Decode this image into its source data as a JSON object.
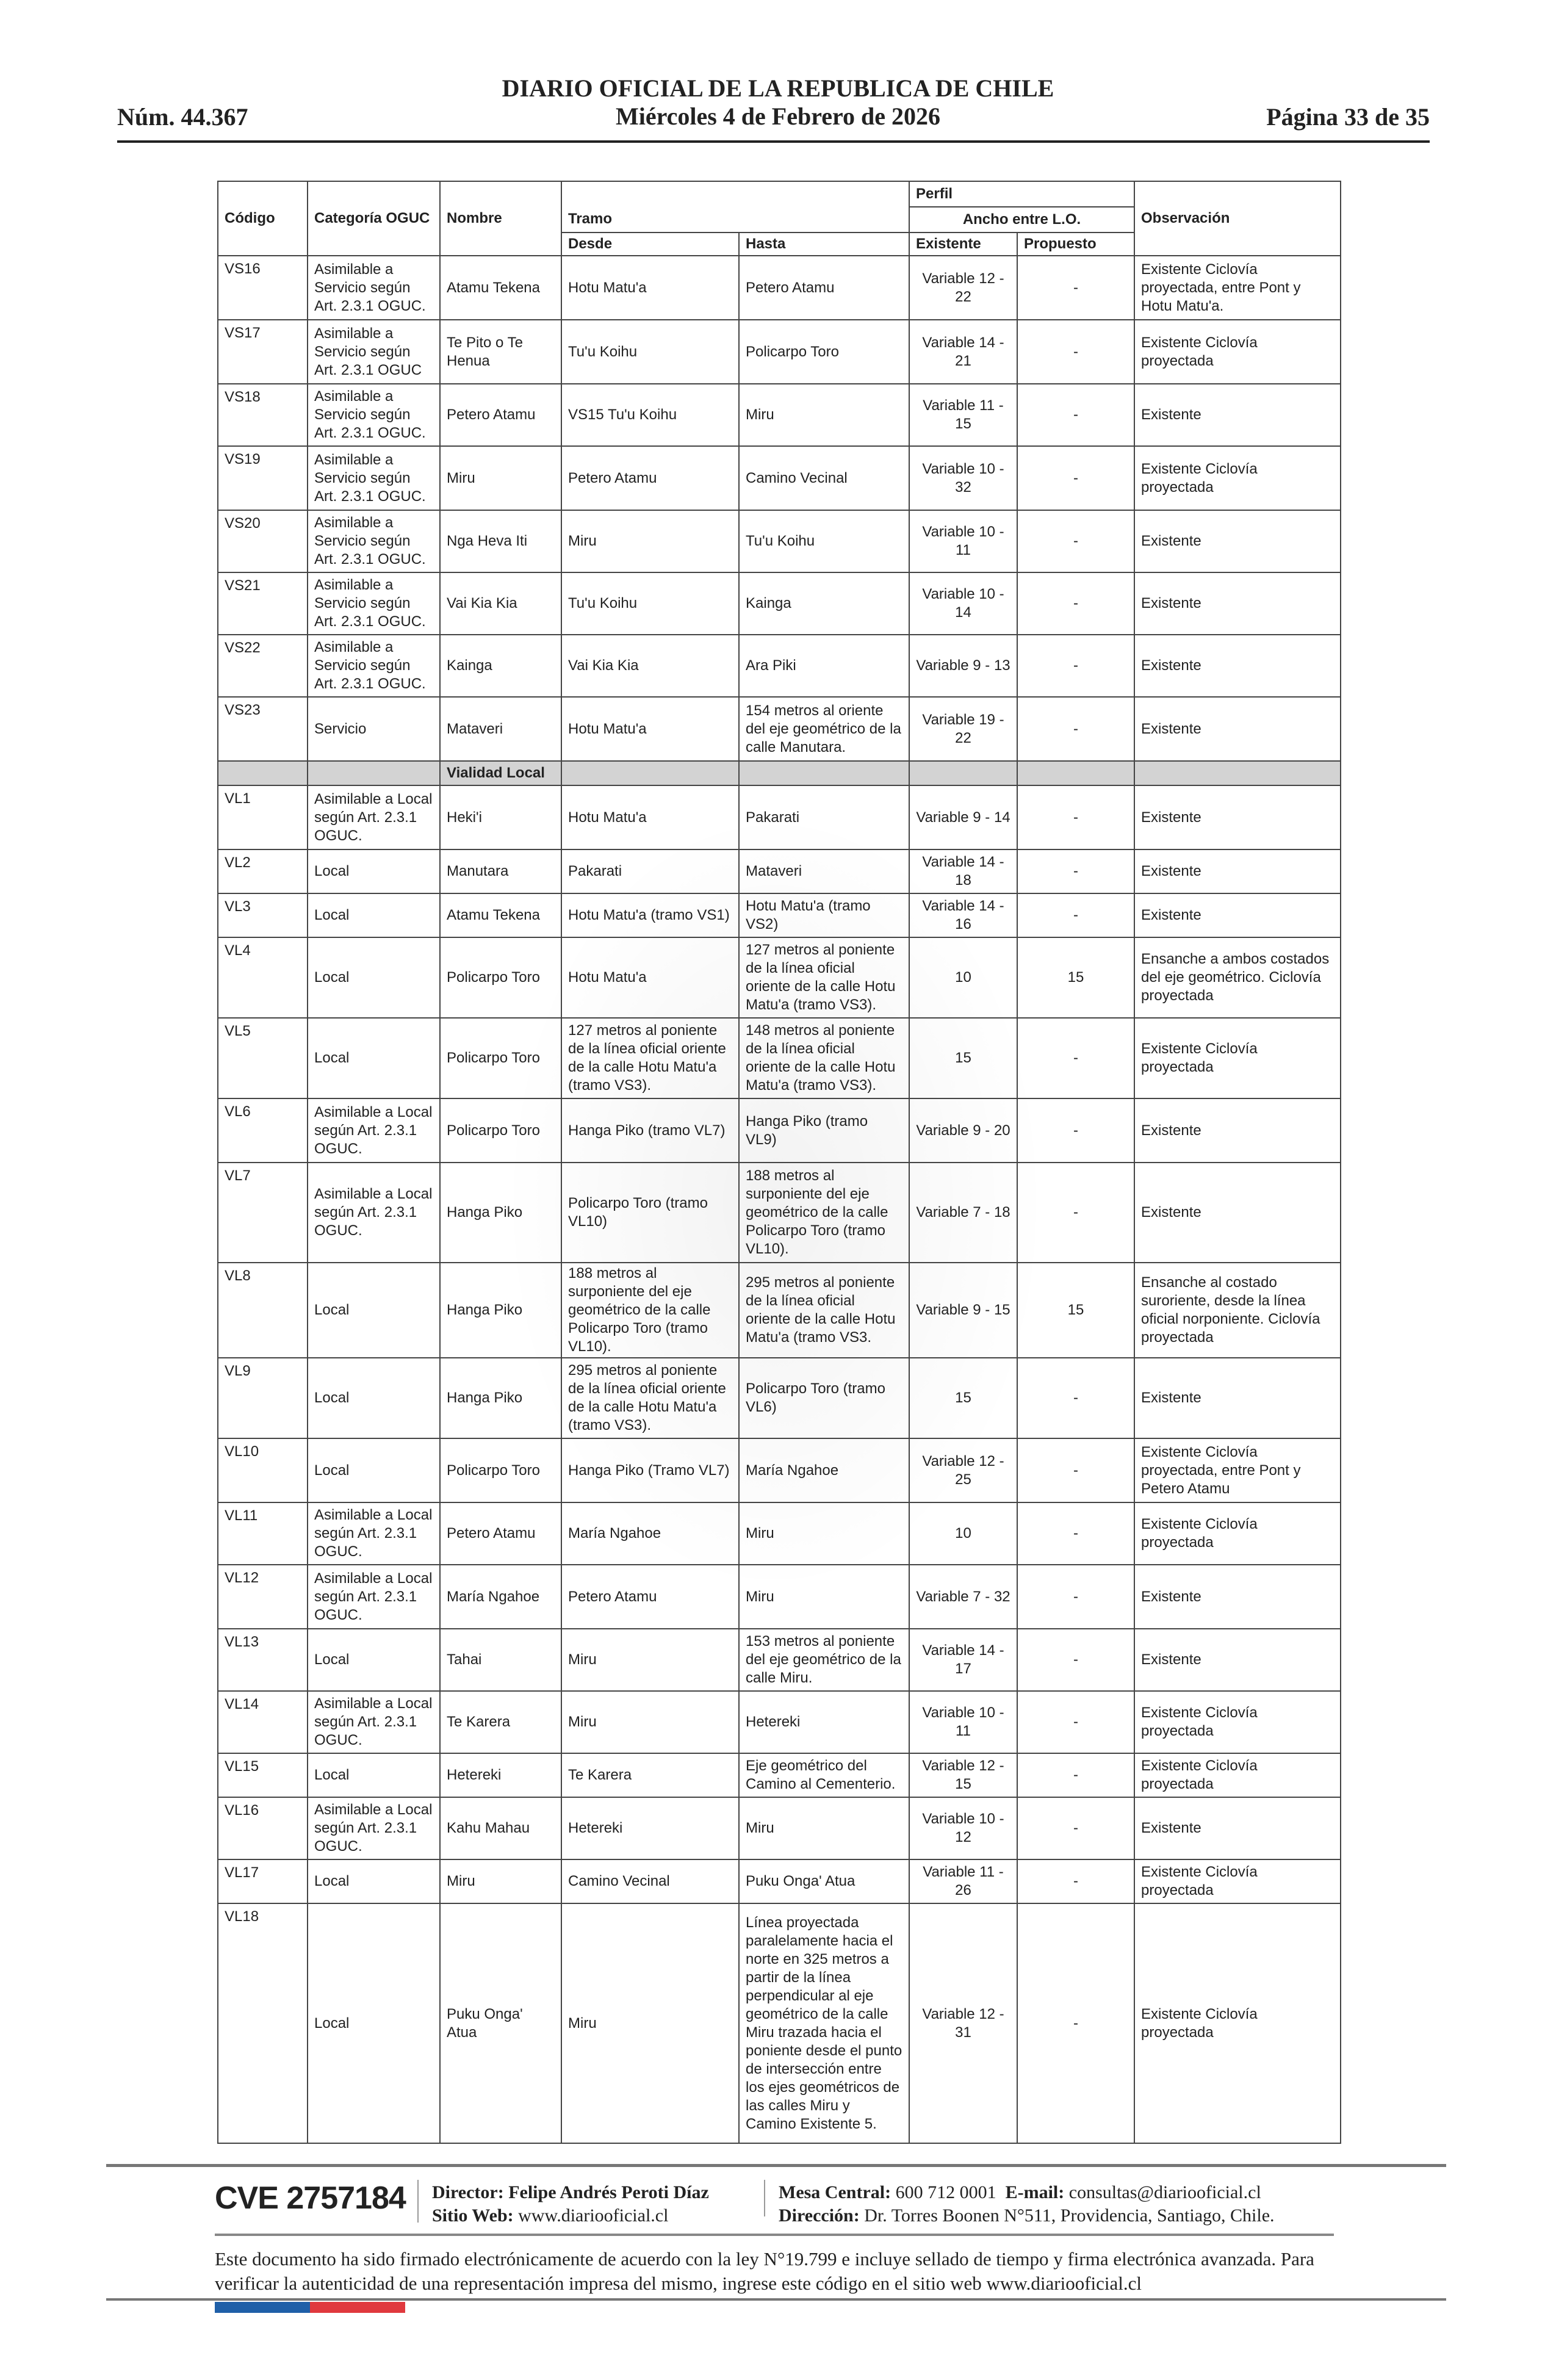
{
  "header": {
    "number": "Núm. 44.367",
    "title": "DIARIO OFICIAL DE LA REPUBLICA DE CHILE",
    "date": "Miércoles 4 de Febrero de 2026",
    "page": "Página 33 de 35"
  },
  "table": {
    "headers": {
      "codigo": "Código",
      "categoria": "Categoría OGUC",
      "nombre": "Nombre",
      "tramo": "Tramo",
      "desde": "Desde",
      "hasta": "Hasta",
      "perfil": "Perfil",
      "ancho": "Ancho entre L.O.",
      "existente": "Existente",
      "propuesto": "Propuesto",
      "observacion": "Observación"
    },
    "rows": [
      {
        "codigo": "VS16",
        "categoria": "Asimilable a Servicio según Art. 2.3.1 OGUC.",
        "nombre": "Atamu Tekena",
        "desde": "Hotu Matu'a",
        "hasta": "Petero Atamu",
        "existente": "Variable 12 - 22",
        "propuesto": "-",
        "observacion": "Existente Ciclovía proyectada, entre Pont y Hotu Matu'a."
      },
      {
        "codigo": "VS17",
        "categoria": "Asimilable a Servicio según Art. 2.3.1 OGUC",
        "nombre": "Te Pito o Te Henua",
        "desde": "Tu'u Koihu",
        "hasta": "Policarpo Toro",
        "existente": "Variable 14 - 21",
        "propuesto": "-",
        "observacion": "Existente Ciclovía proyectada"
      },
      {
        "codigo": "VS18",
        "categoria": "Asimilable a Servicio según Art. 2.3.1 OGUC.",
        "nombre": "Petero Atamu",
        "desde": "VS15 Tu'u Koihu",
        "hasta": "Miru",
        "existente": "Variable 11 - 15",
        "propuesto": "-",
        "observacion": "Existente"
      },
      {
        "codigo": "VS19",
        "categoria": "Asimilable a Servicio según Art. 2.3.1 OGUC.",
        "nombre": "Miru",
        "desde": "Petero Atamu",
        "hasta": "Camino Vecinal",
        "existente": "Variable 10 - 32",
        "propuesto": "-",
        "observacion": "Existente Ciclovía proyectada"
      },
      {
        "codigo": "VS20",
        "categoria": "Asimilable a Servicio según Art. 2.3.1 OGUC.",
        "nombre": "Nga Heva Iti",
        "desde": "Miru",
        "hasta": "Tu'u Koihu",
        "existente": "Variable 10 - 11",
        "propuesto": "-",
        "observacion": "Existente"
      },
      {
        "codigo": "VS21",
        "categoria": "Asimilable a Servicio según Art. 2.3.1 OGUC.",
        "nombre": "Vai Kia Kia",
        "desde": "Tu'u Koihu",
        "hasta": "Kainga",
        "existente": "Variable 10 - 14",
        "propuesto": "-",
        "observacion": "Existente"
      },
      {
        "codigo": "VS22",
        "categoria": "Asimilable a Servicio según Art. 2.3.1 OGUC.",
        "nombre": "Kainga",
        "desde": "Vai Kia Kia",
        "hasta": "Ara Piki",
        "existente": "Variable 9 - 13",
        "propuesto": "-",
        "observacion": "Existente"
      },
      {
        "codigo": "VS23",
        "categoria": "Servicio",
        "nombre": "Mataveri",
        "desde": "Hotu Matu'a",
        "hasta": "154 metros al oriente del eje geométrico de la calle Manutara.",
        "existente": "Variable 19 - 22",
        "propuesto": "-",
        "observacion": "Existente"
      },
      {
        "section": "Vialidad Local"
      },
      {
        "codigo": "VL1",
        "categoria": "Asimilable a Local según Art. 2.3.1 OGUC.",
        "nombre": "Heki'i",
        "desde": "Hotu Matu'a",
        "hasta": "Pakarati",
        "existente": "Variable 9 - 14",
        "propuesto": "-",
        "observacion": "Existente"
      },
      {
        "codigo": "VL2",
        "categoria": "Local",
        "nombre": "Manutara",
        "desde": "Pakarati",
        "hasta": "Mataveri",
        "existente": "Variable 14 - 18",
        "propuesto": "-",
        "observacion": "Existente"
      },
      {
        "codigo": "VL3",
        "categoria": "Local",
        "nombre": "Atamu Tekena",
        "desde": "Hotu Matu'a (tramo VS1)",
        "hasta": "Hotu Matu'a (tramo VS2)",
        "existente": "Variable 14 - 16",
        "propuesto": "-",
        "observacion": "Existente"
      },
      {
        "codigo": "VL4",
        "categoria": "Local",
        "nombre": "Policarpo Toro",
        "desde": "Hotu Matu'a",
        "hasta": "127 metros al poniente de la línea oficial oriente de la calle Hotu Matu'a (tramo VS3).",
        "existente": "10",
        "propuesto": "15",
        "observacion": "Ensanche a ambos costados del eje geométrico. Ciclovía proyectada"
      },
      {
        "codigo": "VL5",
        "categoria": "Local",
        "nombre": "Policarpo Toro",
        "desde": "127 metros al poniente de la línea oficial oriente de la calle Hotu Matu'a (tramo VS3).",
        "hasta": "148 metros al poniente de la línea oficial oriente de la calle Hotu Matu'a (tramo VS3).",
        "existente": "15",
        "propuesto": "-",
        "observacion": "Existente Ciclovía proyectada"
      },
      {
        "codigo": "VL6",
        "categoria": "Asimilable a Local según Art. 2.3.1 OGUC.",
        "nombre": "Policarpo Toro",
        "desde": "Hanga Piko (tramo VL7)",
        "hasta": "Hanga Piko (tramo VL9)",
        "existente": "Variable 9 - 20",
        "propuesto": "-",
        "observacion": "Existente"
      },
      {
        "codigo": "VL7",
        "categoria": "Asimilable a Local según Art. 2.3.1 OGUC.",
        "nombre": "Hanga Piko",
        "desde": "Policarpo Toro (tramo VL10)",
        "hasta": "188 metros al surponiente del eje geométrico de la calle Policarpo Toro (tramo VL10).",
        "existente": "Variable 7 - 18",
        "propuesto": "-",
        "observacion": "Existente"
      },
      {
        "codigo": "VL8",
        "categoria": "Local",
        "nombre": "Hanga Piko",
        "desde": "188 metros al surponiente del eje geométrico de la calle Policarpo Toro (tramo VL10).",
        "hasta": "295 metros al poniente de la línea oficial oriente de la calle Hotu Matu'a (tramo VS3.",
        "existente": "Variable 9 - 15",
        "propuesto": "15",
        "observacion": "Ensanche al costado suroriente, desde la línea oficial norponiente. Ciclovía proyectada"
      },
      {
        "codigo": "VL9",
        "categoria": "Local",
        "nombre": "Hanga Piko",
        "desde": "295 metros al poniente de la línea oficial oriente de la calle Hotu Matu'a (tramo VS3).",
        "hasta": "Policarpo Toro (tramo VL6)",
        "existente": "15",
        "propuesto": "-",
        "observacion": "Existente"
      },
      {
        "codigo": "VL10",
        "categoria": "Local",
        "nombre": "Policarpo Toro",
        "desde": "Hanga Piko (Tramo VL7)",
        "hasta": "María Ngahoe",
        "existente": "Variable 12 - 25",
        "propuesto": "-",
        "observacion": "Existente Ciclovía proyectada, entre Pont y Petero Atamu"
      },
      {
        "codigo": "VL11",
        "categoria": "Asimilable a Local según Art. 2.3.1 OGUC.",
        "nombre": "Petero Atamu",
        "desde": "María Ngahoe",
        "hasta": "Miru",
        "existente": "10",
        "propuesto": "-",
        "observacion": "Existente Ciclovía proyectada"
      },
      {
        "codigo": "VL12",
        "categoria": "Asimilable a Local según Art. 2.3.1 OGUC.",
        "nombre": "María Ngahoe",
        "desde": "Petero Atamu",
        "hasta": "Miru",
        "existente": "Variable 7 - 32",
        "propuesto": "-",
        "observacion": "Existente"
      },
      {
        "codigo": "VL13",
        "categoria": "Local",
        "nombre": "Tahai",
        "desde": "Miru",
        "hasta": "153 metros al poniente del eje geométrico de la calle Miru.",
        "existente": "Variable 14 - 17",
        "propuesto": "-",
        "observacion": "Existente"
      },
      {
        "codigo": "VL14",
        "categoria": "Asimilable a Local según Art. 2.3.1 OGUC.",
        "nombre": "Te Karera",
        "desde": "Miru",
        "hasta": "Hetereki",
        "existente": "Variable 10 - 11",
        "propuesto": "-",
        "observacion": "Existente Ciclovía proyectada"
      },
      {
        "codigo": "VL15",
        "categoria": "Local",
        "nombre": "Hetereki",
        "desde": "Te Karera",
        "hasta": "Eje geométrico del Camino al Cementerio.",
        "existente": "Variable 12 - 15",
        "propuesto": "-",
        "observacion": "Existente Ciclovía proyectada"
      },
      {
        "codigo": "VL16",
        "categoria": "Asimilable a Local según Art. 2.3.1 OGUC.",
        "nombre": "Kahu Mahau",
        "desde": "Hetereki",
        "hasta": "Miru",
        "existente": "Variable 10 - 12",
        "propuesto": "-",
        "observacion": "Existente"
      },
      {
        "codigo": "VL17",
        "categoria": "Local",
        "nombre": "Miru",
        "desde": "Camino Vecinal",
        "hasta": "Puku Onga' Atua",
        "existente": "Variable 11 - 26",
        "propuesto": "-",
        "observacion": "Existente Ciclovía proyectada"
      },
      {
        "codigo": "VL18",
        "categoria": "Local",
        "nombre": "Puku Onga' Atua",
        "desde": "Miru",
        "hasta": "Línea proyectada paralelamente hacia el norte en 325 metros a partir de la línea perpendicular al eje geométrico de la calle Miru trazada hacia el poniente desde el punto de intersección entre los ejes geométricos de las calles Miru y Camino Existente 5.",
        "existente": "Variable 12 - 31",
        "propuesto": "-",
        "observacion": "Existente Ciclovía proyectada"
      }
    ]
  },
  "footer": {
    "cve": "CVE 2757184",
    "director_label": "Director:",
    "director": "Felipe Andrés Peroti Díaz",
    "web_label": "Sitio Web:",
    "web": "www.diariooficial.cl",
    "phone_label": "Mesa Central:",
    "phone": "600 712 0001",
    "email_label": "E-mail:",
    "email": "consultas@diariooficial.cl",
    "address_label": "Dirección:",
    "address": "Dr. Torres Boonen N°511, Providencia, Santiago, Chile.",
    "legal": "Este documento ha sido firmado electrónicamente de acuerdo con la ley N°19.799 e incluye sellado de tiempo y firma electrónica avanzada. Para verificar la autenticidad de una representación impresa del mismo, ingrese este código en el sitio web www.diariooficial.cl"
  },
  "colors": {
    "flag_blue": "#1f5fa8",
    "flag_red": "#e0393e",
    "section_bg": "#d3d3d3"
  }
}
